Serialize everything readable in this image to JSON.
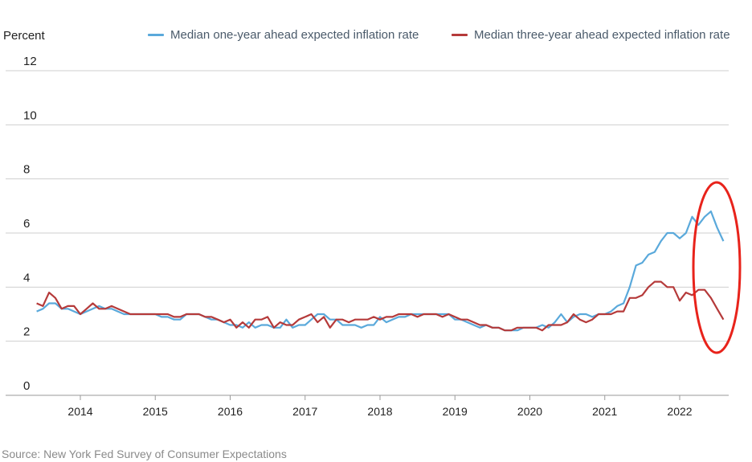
{
  "chart_data": {
    "type": "line",
    "ylabel": "Percent",
    "ylim": [
      0,
      12
    ],
    "yticks": [
      "0",
      "2",
      "4",
      "6",
      "8",
      "10",
      "12"
    ],
    "xticks": [
      "2014",
      "2015",
      "2016",
      "2017",
      "2018",
      "2019",
      "2020",
      "2021",
      "2022"
    ],
    "grid": "horizontal",
    "legend_position": "top-right",
    "colors": {
      "one_year": "#5aa9db",
      "three_year": "#b53a3a",
      "highlight": "#e8231b"
    },
    "source": "Source: New York Fed Survey of Consumer Expectations",
    "annotation": "red ellipse highlighting the most recent months",
    "start_month": "2013-06",
    "series": [
      {
        "name": "Median one-year ahead expected inflation rate",
        "values": [
          3.1,
          3.2,
          3.4,
          3.4,
          3.2,
          3.2,
          3.1,
          3.0,
          3.1,
          3.2,
          3.3,
          3.2,
          3.2,
          3.1,
          3.0,
          3.0,
          3.0,
          3.0,
          3.0,
          3.0,
          2.9,
          2.9,
          2.8,
          2.8,
          3.0,
          3.0,
          3.0,
          2.9,
          2.8,
          2.8,
          2.7,
          2.6,
          2.6,
          2.5,
          2.7,
          2.5,
          2.6,
          2.6,
          2.5,
          2.5,
          2.8,
          2.5,
          2.6,
          2.6,
          2.8,
          3.0,
          3.0,
          2.8,
          2.8,
          2.6,
          2.6,
          2.6,
          2.5,
          2.6,
          2.6,
          2.9,
          2.7,
          2.8,
          2.9,
          2.9,
          3.0,
          3.0,
          3.0,
          3.0,
          3.0,
          3.0,
          3.0,
          2.8,
          2.8,
          2.7,
          2.6,
          2.5,
          2.6,
          2.5,
          2.5,
          2.4,
          2.4,
          2.4,
          2.5,
          2.5,
          2.5,
          2.6,
          2.5,
          2.7,
          3.0,
          2.7,
          2.9,
          3.0,
          3.0,
          2.9,
          3.0,
          3.0,
          3.1,
          3.3,
          3.4,
          4.0,
          4.8,
          4.9,
          5.2,
          5.3,
          5.7,
          6.0,
          6.0,
          5.8,
          6.0,
          6.6,
          6.3,
          6.6,
          6.8,
          6.2,
          5.7
        ]
      },
      {
        "name": "Median three-year ahead expected inflation rate",
        "values": [
          3.4,
          3.3,
          3.8,
          3.6,
          3.2,
          3.3,
          3.3,
          3.0,
          3.2,
          3.4,
          3.2,
          3.2,
          3.3,
          3.2,
          3.1,
          3.0,
          3.0,
          3.0,
          3.0,
          3.0,
          3.0,
          3.0,
          2.9,
          2.9,
          3.0,
          3.0,
          3.0,
          2.9,
          2.9,
          2.8,
          2.7,
          2.8,
          2.5,
          2.7,
          2.5,
          2.8,
          2.8,
          2.9,
          2.5,
          2.7,
          2.6,
          2.6,
          2.8,
          2.9,
          3.0,
          2.7,
          2.9,
          2.5,
          2.8,
          2.8,
          2.7,
          2.8,
          2.8,
          2.8,
          2.9,
          2.8,
          2.9,
          2.9,
          3.0,
          3.0,
          3.0,
          2.9,
          3.0,
          3.0,
          3.0,
          2.9,
          3.0,
          2.9,
          2.8,
          2.8,
          2.7,
          2.6,
          2.6,
          2.5,
          2.5,
          2.4,
          2.4,
          2.5,
          2.5,
          2.5,
          2.5,
          2.4,
          2.6,
          2.6,
          2.6,
          2.7,
          3.0,
          2.8,
          2.7,
          2.8,
          3.0,
          3.0,
          3.0,
          3.1,
          3.1,
          3.6,
          3.6,
          3.7,
          4.0,
          4.2,
          4.2,
          4.0,
          4.0,
          3.5,
          3.8,
          3.7,
          3.9,
          3.9,
          3.6,
          3.2,
          2.8
        ]
      }
    ]
  }
}
